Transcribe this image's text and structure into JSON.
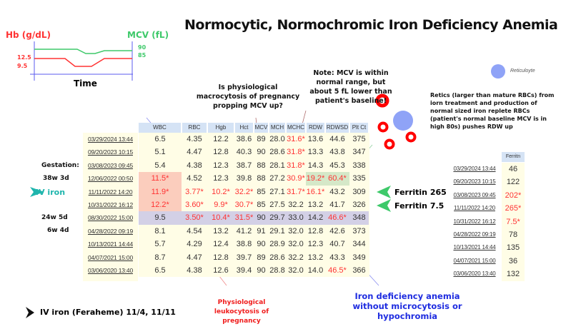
{
  "title": "Normocytic, Normochromic Iron Deficiency Anemia",
  "mini_chart": {
    "left_label": "Hb (g/dL)",
    "right_label": "MCV (fL)",
    "x_label": "Time",
    "hb_ticks": [
      "12.5",
      "9.5"
    ],
    "mcv_ticks": [
      "90",
      "85"
    ],
    "colors": {
      "hb": "#f33333",
      "mcv": "#3ec96a",
      "axis": "#5b5bef"
    }
  },
  "table": {
    "headers": [
      "WBC",
      "RBC",
      "Hgb",
      "Hct",
      "MCV",
      "MCH",
      "MCHC",
      "RDW",
      "RDWSD",
      "Plt Ct"
    ],
    "rows": [
      {
        "date": "03/29/2024 13:44",
        "v": [
          "6.5",
          "4.35",
          "12.2",
          "38.6",
          "89",
          "28.0",
          "31.6*",
          "13.6",
          "44.6",
          "375"
        ]
      },
      {
        "date": "09/20/2023 10:15",
        "v": [
          "5.1",
          "4.47",
          "12.8",
          "40.3",
          "90",
          "28.6",
          "31.8*",
          "13.3",
          "43.8",
          "347"
        ]
      },
      {
        "date": "03/08/2023 09:45",
        "v": [
          "5.4",
          "4.38",
          "12.3",
          "38.7",
          "88",
          "28.1",
          "31.8*",
          "14.3",
          "45.3",
          "338"
        ]
      },
      {
        "date": "12/06/2022 00:50",
        "v": [
          "11.5*",
          "4.52",
          "12.3",
          "39.8",
          "88",
          "27.2",
          "30.9*",
          "19.2*",
          "60.4*",
          "335"
        ]
      },
      {
        "date": "11/11/2022 14:20",
        "v": [
          "11.9*",
          "3.77*",
          "10.2*",
          "32.2*",
          "85",
          "27.1",
          "31.7*",
          "16.1*",
          "43.2",
          "309"
        ]
      },
      {
        "date": "10/31/2022 16:12",
        "v": [
          "12.2*",
          "3.60*",
          "9.9*",
          "30.7*",
          "85",
          "27.5",
          "32.2",
          "13.2",
          "41.7",
          "326"
        ]
      },
      {
        "date": "08/30/2022 15:00",
        "v": [
          "9.5",
          "3.50*",
          "10.4*",
          "31.5*",
          "90",
          "29.7",
          "33.0",
          "14.2",
          "46.6*",
          "348"
        ]
      },
      {
        "date": "04/28/2022 09:19",
        "v": [
          "8.1",
          "4.54",
          "13.2",
          "41.2",
          "91",
          "29.1",
          "32.0",
          "12.8",
          "42.6",
          "373"
        ]
      },
      {
        "date": "10/13/2021 14:44",
        "v": [
          "5.7",
          "4.29",
          "12.4",
          "38.8",
          "90",
          "28.9",
          "32.0",
          "12.3",
          "40.7",
          "344"
        ]
      },
      {
        "date": "04/07/2021 15:00",
        "v": [
          "8.7",
          "4.47",
          "12.8",
          "39.7",
          "89",
          "28.6",
          "32.2",
          "13.2",
          "43.3",
          "349"
        ]
      },
      {
        "date": "03/06/2020 13:40",
        "v": [
          "6.5",
          "4.38",
          "12.6",
          "39.4",
          "90",
          "28.8",
          "32.0",
          "14.0",
          "46.5*",
          "366"
        ]
      }
    ]
  },
  "ferritin": {
    "header": "Ferritn",
    "rows": [
      {
        "date": "03/29/2024 13:44",
        "v": "46"
      },
      {
        "date": "09/20/2023 10:15",
        "v": "122"
      },
      {
        "date": "03/08/2023 09:45",
        "v": "202*"
      },
      {
        "date": "11/11/2022 14:20",
        "v": "265*"
      },
      {
        "date": "10/31/2022 16:12",
        "v": "7.5*"
      },
      {
        "date": "04/28/2022 09:19",
        "v": "78"
      },
      {
        "date": "10/13/2021 14:44",
        "v": "135"
      },
      {
        "date": "04/07/2021 15:00",
        "v": "36"
      },
      {
        "date": "03/06/2020 13:40",
        "v": "132"
      }
    ]
  },
  "labels": {
    "gestation": "Gestation:",
    "g1": "38w 3d",
    "iv_iron": "IV iron",
    "g2": "24w 5d",
    "g3": "6w 4d",
    "ferritin_265": "Ferritin 265",
    "ferritin_75": "Ferritin 7.5",
    "iv_iron_note": "IV iron (Feraheme) 11/4, 11/11",
    "reticulocyte": "Reticuloyte"
  },
  "notes": {
    "macrocytosis": "Is physiological macrocytosis of pregnancy propping MCV up?",
    "mcv_note": "Note: MCV is within normal range, but about 5 fL lower than patient's baseline!",
    "retics": "Retics (larger than mature RBCs) from iorn treatment and production of normal sized iron replete RBCs (patient's normal baseline MCV is in high 80s) pushes RDW up",
    "leukocytosis": "Physiological leukocytosis of pregnancy",
    "ida": "Iron deficiency anemia without microcytosis or hypochromia"
  },
  "colors": {
    "abnormal": "#f33333",
    "highlight_row": "#d3d0e6",
    "wbc_highlight": "#fbcdbd",
    "rdw_highlight": "#d5e8c8",
    "arrow": "#3ec96a",
    "rbc": "#ff0000",
    "retic": "#8fa3f7"
  }
}
